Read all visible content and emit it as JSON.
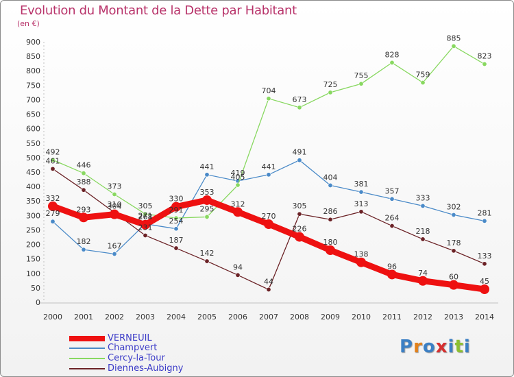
{
  "title": "Evolution du Montant de la Dette par Habitant",
  "unit_label": "(en €)",
  "logo": {
    "text": "Proxiti",
    "letters": [
      {
        "ch": "P",
        "color": "#3b7fc4"
      },
      {
        "ch": "r",
        "color": "#e2811b"
      },
      {
        "ch": "o",
        "color": "#3b7fc4"
      },
      {
        "ch": "x",
        "color": "#d62f2f"
      },
      {
        "ch": "i",
        "color": "#3b7fc4"
      },
      {
        "ch": "t",
        "color": "#8cbf2f"
      },
      {
        "ch": "i",
        "color": "#3b7fc4"
      }
    ]
  },
  "chart_data": {
    "type": "line",
    "title": "Evolution du Montant de la Dette par Habitant",
    "ylabel": "(en €)",
    "xlabel": "",
    "x": [
      "2000",
      "2001",
      "2002",
      "2003",
      "2004",
      "2005",
      "2006",
      "2007",
      "2008",
      "2009",
      "2010",
      "2011",
      "2012",
      "2013",
      "2014"
    ],
    "ylim": [
      0,
      900
    ],
    "yticks": [
      0,
      50,
      100,
      150,
      200,
      250,
      300,
      350,
      400,
      450,
      500,
      550,
      600,
      650,
      700,
      750,
      800,
      850,
      900
    ],
    "grid": false,
    "legend_position": "bottom-left",
    "series": [
      {
        "name": "VERNEUIL",
        "color": "#ee1111",
        "emphasis": true,
        "values": [
          332,
          293,
          304,
          268,
          330,
          353,
          312,
          270,
          226,
          180,
          138,
          96,
          74,
          60,
          45
        ]
      },
      {
        "name": "Champvert",
        "color": "#4a8ac8",
        "emphasis": false,
        "values": [
          279,
          182,
          167,
          271,
          254,
          441,
          419,
          441,
          491,
          404,
          381,
          357,
          333,
          302,
          281
        ]
      },
      {
        "name": "Cercy-la-Tour",
        "color": "#88d860",
        "emphasis": false,
        "values": [
          492,
          446,
          373,
          305,
          291,
          295,
          405,
          704,
          673,
          725,
          755,
          828,
          759,
          885,
          823
        ]
      },
      {
        "name": "Diennes-Aubigny",
        "color": "#6b2226",
        "emphasis": false,
        "values": [
          461,
          388,
          310,
          231,
          187,
          142,
          94,
          44,
          305,
          286,
          313,
          264,
          218,
          178,
          133
        ]
      }
    ]
  }
}
